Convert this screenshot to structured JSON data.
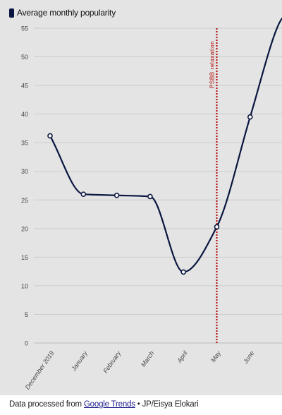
{
  "chart_data": {
    "type": "line",
    "categories": [
      "December 2019",
      "January",
      "February",
      "March",
      "April",
      "May",
      "June"
    ],
    "series": [
      {
        "name": "Average monthly popularity",
        "values": [
          36.2,
          26,
          25.8,
          25.6,
          12.4,
          20.3,
          39.5
        ],
        "color": "#0a1640"
      }
    ],
    "ylim": [
      0,
      55
    ],
    "yticks": [
      0,
      5,
      10,
      15,
      20,
      25,
      30,
      35,
      40,
      45,
      50,
      55
    ],
    "grid": true,
    "legend_position": "top-left",
    "annotations": [
      {
        "label": "PSBB relaxation",
        "x": "May",
        "color": "#b00000",
        "style": "dotted vertical line"
      }
    ]
  },
  "footer": {
    "prefix": "Data processed from ",
    "link_text": "Google Trends",
    "suffix": " • JP/Eisya Elokari"
  },
  "colors": {
    "background": "#e4e4e4",
    "line": "#0a1640",
    "annotation": "#b00000",
    "grid": "#cccccc"
  }
}
